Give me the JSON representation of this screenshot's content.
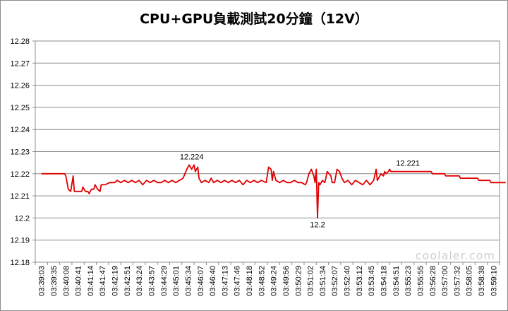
{
  "chart_data": {
    "type": "line",
    "title": "CPU+GPU負載測試20分鐘（12V）",
    "ylim": [
      12.18,
      12.28
    ],
    "yticks": [
      "12.28",
      "12.27",
      "12.26",
      "12.25",
      "12.24",
      "12.23",
      "12.22",
      "12.21",
      "12.2",
      "12.19",
      "12.18"
    ],
    "xticks": [
      "03:39:03",
      "03:39:35",
      "03:40:08",
      "03:40:41",
      "03:41:14",
      "03:41:47",
      "03:42:19",
      "03:42:51",
      "03:43:24",
      "03:43:57",
      "03:44:29",
      "03:45:01",
      "03:45:34",
      "03:46:07",
      "03:46:40",
      "03:47:13",
      "03:47:46",
      "03:48:18",
      "03:48:52",
      "03:49:24",
      "03:49:56",
      "03:50:29",
      "03:51:02",
      "03:51:34",
      "03:52:07",
      "03:52:40",
      "03:53:12",
      "03:53:45",
      "03:54:18",
      "03:54:51",
      "03:55:23",
      "03:55:55",
      "03:56:28",
      "03:57:00",
      "03:57:32",
      "03:58:05",
      "03:58:38",
      "03:59:10"
    ],
    "series_color": "#e00000",
    "grid": true,
    "annotations": [
      {
        "label": "12.224",
        "x_index": 12.3,
        "value": 12.224,
        "pos": "above"
      },
      {
        "label": "12.2",
        "x_index": 22.6,
        "value": 12.2,
        "pos": "below"
      },
      {
        "label": "12.221",
        "x_index": 30.0,
        "value": 12.221,
        "pos": "above"
      }
    ],
    "series": [
      {
        "points": [
          [
            0,
            12.22
          ],
          [
            1.9,
            12.22
          ],
          [
            2.0,
            12.219
          ],
          [
            2.2,
            12.213
          ],
          [
            2.4,
            12.212
          ],
          [
            2.6,
            12.219
          ],
          [
            2.7,
            12.212
          ],
          [
            3.0,
            12.212
          ],
          [
            3.3,
            12.212
          ],
          [
            3.4,
            12.214
          ],
          [
            3.6,
            12.212
          ],
          [
            3.8,
            12.212
          ],
          [
            3.9,
            12.211
          ],
          [
            4.1,
            12.213
          ],
          [
            4.3,
            12.213
          ],
          [
            4.4,
            12.215
          ],
          [
            4.6,
            12.213
          ],
          [
            4.8,
            12.212
          ],
          [
            4.9,
            12.215
          ],
          [
            5.2,
            12.215
          ],
          [
            5.6,
            12.216
          ],
          [
            6.0,
            12.216
          ],
          [
            6.2,
            12.217
          ],
          [
            6.5,
            12.216
          ],
          [
            6.8,
            12.217
          ],
          [
            7.1,
            12.216
          ],
          [
            7.4,
            12.217
          ],
          [
            7.7,
            12.216
          ],
          [
            8.0,
            12.217
          ],
          [
            8.3,
            12.215
          ],
          [
            8.6,
            12.217
          ],
          [
            8.9,
            12.216
          ],
          [
            9.2,
            12.217
          ],
          [
            9.5,
            12.216
          ],
          [
            9.8,
            12.216
          ],
          [
            10.1,
            12.217
          ],
          [
            10.4,
            12.216
          ],
          [
            10.7,
            12.217
          ],
          [
            11.0,
            12.216
          ],
          [
            11.3,
            12.217
          ],
          [
            11.6,
            12.218
          ],
          [
            11.9,
            12.222
          ],
          [
            12.1,
            12.224
          ],
          [
            12.3,
            12.222
          ],
          [
            12.5,
            12.224
          ],
          [
            12.6,
            12.221
          ],
          [
            12.8,
            12.223
          ],
          [
            12.9,
            12.218
          ],
          [
            13.1,
            12.216
          ],
          [
            13.4,
            12.217
          ],
          [
            13.7,
            12.216
          ],
          [
            13.9,
            12.218
          ],
          [
            14.1,
            12.216
          ],
          [
            14.4,
            12.217
          ],
          [
            14.7,
            12.216
          ],
          [
            15.0,
            12.217
          ],
          [
            15.3,
            12.216
          ],
          [
            15.6,
            12.217
          ],
          [
            15.9,
            12.216
          ],
          [
            16.2,
            12.217
          ],
          [
            16.5,
            12.215
          ],
          [
            16.8,
            12.217
          ],
          [
            17.1,
            12.216
          ],
          [
            17.4,
            12.217
          ],
          [
            17.7,
            12.216
          ],
          [
            18.0,
            12.217
          ],
          [
            18.4,
            12.216
          ],
          [
            18.6,
            12.223
          ],
          [
            18.8,
            12.222
          ],
          [
            18.9,
            12.217
          ],
          [
            19.0,
            12.221
          ],
          [
            19.2,
            12.217
          ],
          [
            19.5,
            12.216
          ],
          [
            19.8,
            12.217
          ],
          [
            20.1,
            12.216
          ],
          [
            20.4,
            12.216
          ],
          [
            20.7,
            12.217
          ],
          [
            21.0,
            12.216
          ],
          [
            21.3,
            12.216
          ],
          [
            21.6,
            12.215
          ],
          [
            21.7,
            12.216
          ],
          [
            21.9,
            12.22
          ],
          [
            22.1,
            12.222
          ],
          [
            22.3,
            12.219
          ],
          [
            22.4,
            12.216
          ],
          [
            22.5,
            12.222
          ],
          [
            22.6,
            12.2
          ],
          [
            22.7,
            12.216
          ],
          [
            22.8,
            12.215
          ],
          [
            23.0,
            12.217
          ],
          [
            23.2,
            12.216
          ],
          [
            23.4,
            12.221
          ],
          [
            23.7,
            12.219
          ],
          [
            23.8,
            12.216
          ],
          [
            24.0,
            12.216
          ],
          [
            24.2,
            12.222
          ],
          [
            24.4,
            12.221
          ],
          [
            24.6,
            12.218
          ],
          [
            24.8,
            12.216
          ],
          [
            25.1,
            12.217
          ],
          [
            25.4,
            12.215
          ],
          [
            25.7,
            12.217
          ],
          [
            26.0,
            12.216
          ],
          [
            26.3,
            12.215
          ],
          [
            26.6,
            12.217
          ],
          [
            26.9,
            12.215
          ],
          [
            27.2,
            12.217
          ],
          [
            27.4,
            12.222
          ],
          [
            27.5,
            12.217
          ],
          [
            27.7,
            12.219
          ],
          [
            27.8,
            12.22
          ],
          [
            28.0,
            12.219
          ],
          [
            28.1,
            12.221
          ],
          [
            28.2,
            12.22
          ],
          [
            28.4,
            12.221
          ],
          [
            28.5,
            12.222
          ],
          [
            28.6,
            12.221
          ],
          [
            29.4,
            12.221
          ],
          [
            30.3,
            12.221
          ],
          [
            31.2,
            12.221
          ],
          [
            31.9,
            12.221
          ],
          [
            32.0,
            12.22
          ],
          [
            33.0,
            12.22
          ],
          [
            33.1,
            12.219
          ],
          [
            34.2,
            12.219
          ],
          [
            34.3,
            12.218
          ],
          [
            35.7,
            12.218
          ],
          [
            35.8,
            12.217
          ],
          [
            36.7,
            12.217
          ],
          [
            36.8,
            12.216
          ],
          [
            38.0,
            12.216
          ]
        ]
      }
    ]
  },
  "watermark": "coolaler.com"
}
